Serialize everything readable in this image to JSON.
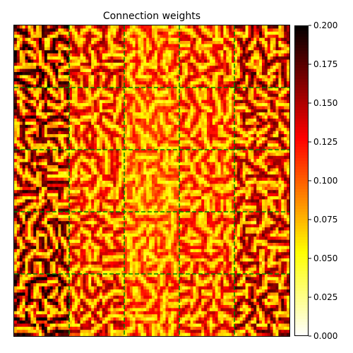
{
  "chart_data": {
    "type": "heatmap",
    "title": "Connection weights",
    "colormap": "hot_r",
    "vmin": 0.0,
    "vmax": 0.2,
    "colorbar_ticks": [
      0.0,
      0.025,
      0.05,
      0.075,
      0.1,
      0.125,
      0.15,
      0.175,
      0.2
    ],
    "colorbar_tick_labels": [
      "0.000",
      "0.025",
      "0.050",
      "0.075",
      "0.100",
      "0.125",
      "0.150",
      "0.175",
      "0.200"
    ],
    "axes_ticks_visible": false,
    "block_grid": {
      "rows": 5,
      "cols": 5,
      "line_color": "#008000",
      "line_style": "dashed"
    },
    "patch_grid": {
      "rows": 25,
      "cols": 25
    },
    "column_band_mean_weights": [
      0.14,
      0.1,
      0.075,
      0.09,
      0.12
    ],
    "row_band_mean_weights": [
      0.11,
      0.1,
      0.095,
      0.1,
      0.11
    ]
  }
}
